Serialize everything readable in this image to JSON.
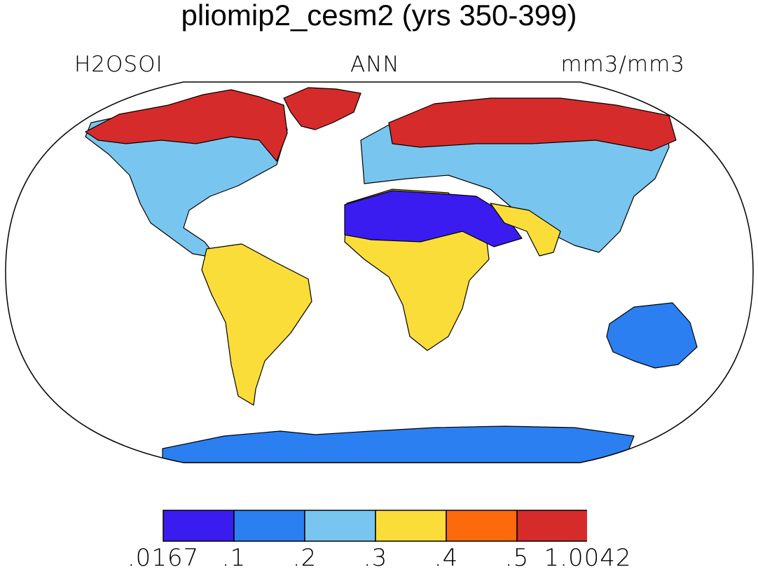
{
  "title": "pliomip2_cesm2 (yrs 350-399)",
  "labels": {
    "left": "H2OSOI",
    "center": "ANN",
    "right": "mm3/mm3"
  },
  "colorbar": {
    "bins": [
      {
        "color": "#3a1cf0"
      },
      {
        "color": "#2c7ff0"
      },
      {
        "color": "#78c6ef"
      },
      {
        "color": "#fbdd3a"
      },
      {
        "color": "#fd6a0c"
      },
      {
        "color": "#d62b2b"
      }
    ],
    "ticks": [
      ".0167",
      ".1",
      ".2",
      ".3",
      ".4",
      ".5",
      "1.0042"
    ]
  },
  "colors": {
    "c1": "#3a1cf0",
    "c2": "#2c7ff0",
    "c3": "#78c6ef",
    "c4": "#fbdd3a",
    "c5": "#fd6a0c",
    "c6": "#d62b2b"
  },
  "regions": [
    {
      "name": "north-america",
      "color": "c3"
    },
    {
      "name": "canada-north",
      "color": "c6"
    },
    {
      "name": "greenland",
      "color": "c6"
    },
    {
      "name": "south-america",
      "color": "c4"
    },
    {
      "name": "africa",
      "color": "c4"
    },
    {
      "name": "sahara-arabia",
      "color": "c1"
    },
    {
      "name": "eurasia",
      "color": "c3"
    },
    {
      "name": "siberia",
      "color": "c6"
    },
    {
      "name": "south-asia",
      "color": "c4"
    },
    {
      "name": "australia",
      "color": "c2"
    },
    {
      "name": "antarctica",
      "color": "c2"
    }
  ]
}
